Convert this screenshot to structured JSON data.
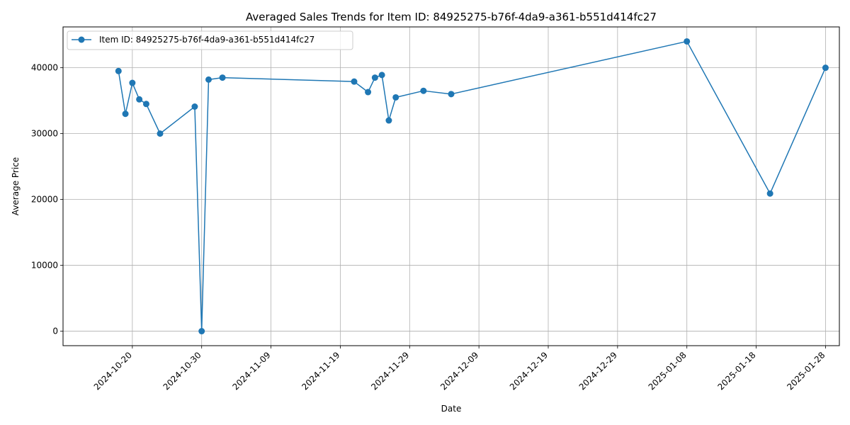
{
  "chart_data": {
    "type": "line",
    "title": "Averaged Sales Trends for Item ID: 84925275-b76f-4da9-a361-b551d414fc27",
    "xlabel": "Date",
    "ylabel": "Average Price",
    "xlim": [
      "2024-10-10",
      "2025-01-30"
    ],
    "ylim": [
      -2200,
      46200
    ],
    "x_ticks": [
      "2024-10-20",
      "2024-10-30",
      "2024-11-09",
      "2024-11-19",
      "2024-11-29",
      "2024-12-09",
      "2024-12-19",
      "2024-12-29",
      "2025-01-08",
      "2025-01-18",
      "2025-01-28"
    ],
    "y_ticks": [
      0,
      10000,
      20000,
      30000,
      40000
    ],
    "grid": true,
    "legend_position": "top-left",
    "colors": {
      "series": "#1f77b4"
    },
    "series": [
      {
        "name": "Item ID: 84925275-b76f-4da9-a361-b551d414fc27",
        "x": [
          "2024-10-18",
          "2024-10-19",
          "2024-10-20",
          "2024-10-21",
          "2024-10-22",
          "2024-10-24",
          "2024-10-29",
          "2024-10-30",
          "2024-10-31",
          "2024-11-02",
          "2024-11-21",
          "2024-11-23",
          "2024-11-24",
          "2024-11-25",
          "2024-11-26",
          "2024-11-27",
          "2024-12-01",
          "2024-12-05",
          "2025-01-08",
          "2025-01-20",
          "2025-01-28"
        ],
        "y": [
          39500,
          33000,
          37700,
          35200,
          34500,
          30000,
          34100,
          0,
          38200,
          38500,
          37900,
          36300,
          38500,
          38900,
          32000,
          35500,
          36500,
          36000,
          44000,
          20900,
          40000
        ]
      }
    ]
  }
}
